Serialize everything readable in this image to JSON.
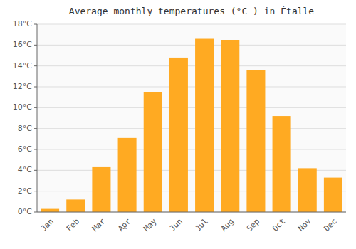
{
  "chart_data": {
    "type": "bar",
    "title": "Average monthly temperatures (°C ) in Étalle",
    "categories": [
      "Jan",
      "Feb",
      "Mar",
      "Apr",
      "May",
      "Jun",
      "Jul",
      "Aug",
      "Sep",
      "Oct",
      "Nov",
      "Dec"
    ],
    "values": [
      0.3,
      1.2,
      4.3,
      7.1,
      11.5,
      14.8,
      16.6,
      16.5,
      13.6,
      9.2,
      4.2,
      3.3
    ],
    "color": "#FFAA22",
    "ylim": [
      0,
      18
    ],
    "yticks": [
      {
        "value": 0,
        "label": "0°C"
      },
      {
        "value": 2,
        "label": "2°C"
      },
      {
        "value": 4,
        "label": "4°C"
      },
      {
        "value": 6,
        "label": "6°C"
      },
      {
        "value": 8,
        "label": "8°C"
      },
      {
        "value": 10,
        "label": "10°C"
      },
      {
        "value": 12,
        "label": "12°C"
      },
      {
        "value": 14,
        "label": "14°C"
      },
      {
        "value": 16,
        "label": "16°C"
      },
      {
        "value": 18,
        "label": "18°C"
      }
    ],
    "grid": true
  }
}
